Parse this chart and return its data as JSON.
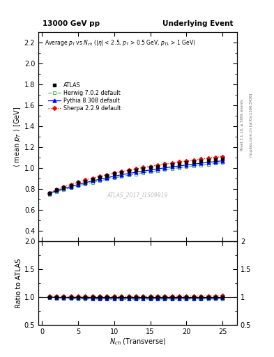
{
  "title_left": "13000 GeV pp",
  "title_right": "Underlying Event",
  "ylabel_main": "\\langle mean p_T \\rangle [GeV]",
  "ylabel_ratio": "Ratio to ATLAS",
  "watermark": "ATLAS_2017_I1509919",
  "right_label": "mcplots.cern.ch [arXiv:1306.3436]",
  "rivet_label": "Rivet 3.1.10, ≥ 500k events",
  "ylim_main": [
    0.3,
    2.3
  ],
  "ylim_ratio": [
    0.5,
    2.0
  ],
  "yticks_main": [
    0.4,
    0.6,
    0.8,
    1.0,
    1.2,
    1.4,
    1.6,
    1.8,
    2.0,
    2.2
  ],
  "yticks_ratio": [
    0.5,
    1.0,
    1.5,
    2.0
  ],
  "xlim": [
    -0.5,
    27
  ],
  "xticks": [
    0,
    5,
    10,
    15,
    20,
    25
  ],
  "atlas_x": [
    1,
    2,
    3,
    4,
    5,
    6,
    7,
    8,
    9,
    10,
    11,
    12,
    13,
    14,
    15,
    16,
    17,
    18,
    19,
    20,
    21,
    22,
    23,
    24,
    25
  ],
  "atlas_y": [
    0.757,
    0.791,
    0.812,
    0.836,
    0.858,
    0.876,
    0.896,
    0.913,
    0.929,
    0.944,
    0.958,
    0.971,
    0.983,
    0.994,
    1.005,
    1.015,
    1.025,
    1.033,
    1.042,
    1.051,
    1.059,
    1.067,
    1.075,
    1.083,
    1.09
  ],
  "atlas_yerr": [
    0.01,
    0.008,
    0.007,
    0.006,
    0.006,
    0.005,
    0.005,
    0.005,
    0.005,
    0.005,
    0.005,
    0.005,
    0.005,
    0.005,
    0.005,
    0.005,
    0.005,
    0.005,
    0.005,
    0.005,
    0.005,
    0.005,
    0.005,
    0.005,
    0.006
  ],
  "herwig_y": [
    0.748,
    0.774,
    0.793,
    0.812,
    0.83,
    0.847,
    0.863,
    0.878,
    0.892,
    0.906,
    0.919,
    0.931,
    0.943,
    0.954,
    0.965,
    0.975,
    0.984,
    0.994,
    1.003,
    1.012,
    1.02,
    1.028,
    1.036,
    1.044,
    1.052
  ],
  "pythia_y": [
    0.757,
    0.784,
    0.804,
    0.823,
    0.842,
    0.86,
    0.877,
    0.893,
    0.908,
    0.922,
    0.936,
    0.948,
    0.96,
    0.971,
    0.982,
    0.992,
    1.002,
    1.011,
    1.02,
    1.029,
    1.037,
    1.046,
    1.054,
    1.062,
    1.069
  ],
  "sherpa_y": [
    0.762,
    0.796,
    0.82,
    0.843,
    0.864,
    0.884,
    0.903,
    0.92,
    0.936,
    0.951,
    0.966,
    0.979,
    0.992,
    1.004,
    1.016,
    1.027,
    1.037,
    1.048,
    1.057,
    1.067,
    1.076,
    1.085,
    1.094,
    1.102,
    1.11
  ],
  "atlas_color": "black",
  "herwig_color": "#44bb44",
  "pythia_color": "blue",
  "sherpa_color": "red",
  "bg_color": "white"
}
